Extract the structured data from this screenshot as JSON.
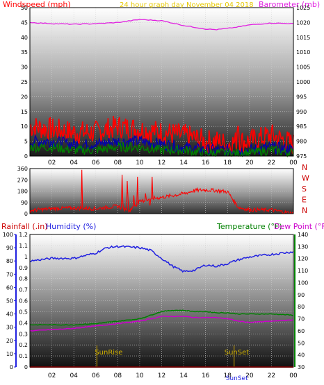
{
  "title": "24 hour graph day   November 04 2018",
  "x_ticks": [
    "02",
    "04",
    "06",
    "08",
    "10",
    "12",
    "14",
    "16",
    "18",
    "20",
    "22",
    "00"
  ],
  "colors": {
    "frame": "#000000",
    "grid": "#cfcfcf",
    "wind": "#ff0000",
    "gust_dark": "#0000b0",
    "wind_green": "#008000",
    "baro": "#e020e0",
    "dir": "#ff0000",
    "rain": "#cc0000",
    "humid": "#2020e0",
    "temp": "#008000",
    "dew": "#cc00cc",
    "title": "#e6c800",
    "sun": "#c8a000"
  },
  "chart_data": [
    {
      "type": "line",
      "name": "wind_baro",
      "left_label": "Windspeed (mph)",
      "right_label": "Barometer (mb)",
      "ylim_left": [
        0,
        50
      ],
      "ylim_right": [
        975,
        1025
      ],
      "left_ticks": [
        "0",
        "5",
        "10",
        "15",
        "20",
        "25",
        "30",
        "35",
        "40",
        "45",
        "50"
      ],
      "right_ticks": [
        "975",
        "980",
        "985",
        "990",
        "995",
        "1000",
        "1005",
        "1010",
        "1015",
        "1020",
        "1025"
      ],
      "x_hours": [
        0,
        2,
        4,
        6,
        8,
        10,
        12,
        14,
        16,
        17,
        18,
        19,
        20,
        22,
        24
      ],
      "series": [
        {
          "role": "wind",
          "values": [
            10,
            9,
            8,
            8,
            10,
            9,
            8,
            7,
            5,
            5,
            4,
            5,
            5,
            7,
            4
          ]
        },
        {
          "role": "gust_dark",
          "values": [
            5,
            5,
            4,
            4,
            5,
            5,
            4,
            3,
            2,
            2,
            2,
            2,
            2,
            3,
            2
          ]
        },
        {
          "role": "wind_green",
          "values": [
            3,
            3,
            2,
            2,
            3,
            3,
            2,
            2,
            1,
            1,
            1,
            1,
            1,
            2,
            1
          ]
        },
        {
          "role": "baro",
          "values": [
            1020,
            1019.6,
            1019.4,
            1019.6,
            1020,
            1021,
            1020.6,
            1019,
            1017.8,
            1017.6,
            1018,
            1018.5,
            1019.2,
            1019.8,
            1019.6
          ]
        }
      ]
    },
    {
      "type": "line",
      "name": "direction",
      "left_ticks": [
        "0",
        "90",
        "180",
        "270",
        "360"
      ],
      "right_ticks": [
        "N",
        "W",
        "S",
        "E",
        "N"
      ],
      "ylim": [
        0,
        360
      ],
      "x_hours": [
        0,
        2,
        4,
        6,
        8,
        9,
        10,
        11,
        12,
        14,
        15,
        16,
        17,
        18,
        19,
        20,
        22,
        24
      ],
      "values": [
        25,
        40,
        45,
        40,
        60,
        20,
        95,
        120,
        130,
        160,
        185,
        190,
        185,
        175,
        50,
        30,
        30,
        0
      ]
    },
    {
      "type": "line",
      "name": "rain_humidity_temp",
      "left_label": "Rainfall (.in)",
      "humidity_label": "Humidity (%)",
      "temp_label": "Temperature (°F)",
      "dew_label": "Dew Point (°F)",
      "sunrise": "SunRise",
      "sunset": "SunSet",
      "sunrise_hour": 6.1,
      "sunset_hour": 18.6,
      "rain_ylim": [
        0,
        1.2
      ],
      "humid_ylim": [
        0,
        100
      ],
      "temp_ylim": [
        30,
        140
      ],
      "rain_ticks": [
        "0",
        "0.1",
        "0.2",
        "0.3",
        "0.4",
        "0.5",
        "0.6",
        "0.7",
        "0.8",
        "0.9",
        "1",
        "1.1",
        "1.2"
      ],
      "humid_ticks": [
        "0",
        "10",
        "20",
        "30",
        "40",
        "50",
        "60",
        "70",
        "80",
        "90",
        "100"
      ],
      "temp_ticks": [
        "30",
        "40",
        "50",
        "60",
        "70",
        "80",
        "90",
        "100",
        "110",
        "120",
        "130",
        "140"
      ],
      "x_hours": [
        0,
        2,
        4,
        6,
        7,
        8,
        10,
        11,
        12,
        13,
        14,
        15,
        16,
        17,
        18,
        19,
        20,
        22,
        24
      ],
      "series": [
        {
          "role": "humid",
          "values": [
            80,
            82,
            82,
            86,
            90,
            91,
            90,
            88,
            82,
            76,
            72,
            73,
            77,
            76,
            78,
            81,
            83,
            85,
            87
          ]
        },
        {
          "role": "temp",
          "values": [
            65,
            65,
            65,
            66,
            67,
            68,
            70,
            73,
            76,
            77,
            77,
            76,
            76,
            75,
            75,
            74,
            74,
            74,
            73
          ]
        },
        {
          "role": "dew",
          "values": [
            60,
            61,
            62,
            64,
            65,
            66,
            68,
            70,
            72,
            72,
            72,
            71,
            71,
            71,
            70,
            68,
            67,
            68,
            69
          ]
        },
        {
          "role": "rain",
          "values": [
            0,
            0,
            0,
            0,
            0,
            0,
            0,
            0,
            0,
            0,
            0,
            0,
            0,
            0,
            0,
            0,
            0,
            0,
            0
          ]
        }
      ]
    }
  ]
}
